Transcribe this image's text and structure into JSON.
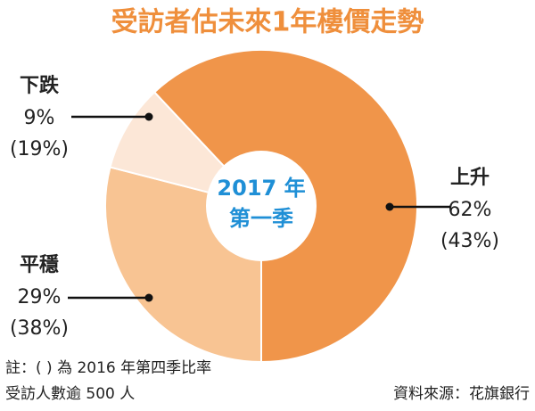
{
  "chart_data": {
    "type": "donut",
    "title": "受訪者估未來1年樓價走勢",
    "center_label": [
      "2017 年",
      "第一季"
    ],
    "categories": [
      "上升",
      "平穩",
      "下跌"
    ],
    "values": [
      62,
      29,
      9
    ],
    "value_labels": [
      "62%",
      "29%",
      "9%"
    ],
    "previous_values": [
      43,
      38,
      19
    ],
    "previous_labels": [
      "(43%)",
      "(38%)",
      "(19%)"
    ],
    "colors": [
      "#f0954a",
      "#f8c493",
      "#fce7d7"
    ],
    "notes": [
      "註：( ) 為 2016 年第四季比率",
      "受訪人數逾 500 人"
    ],
    "source": "資料來源：花旗銀行"
  }
}
